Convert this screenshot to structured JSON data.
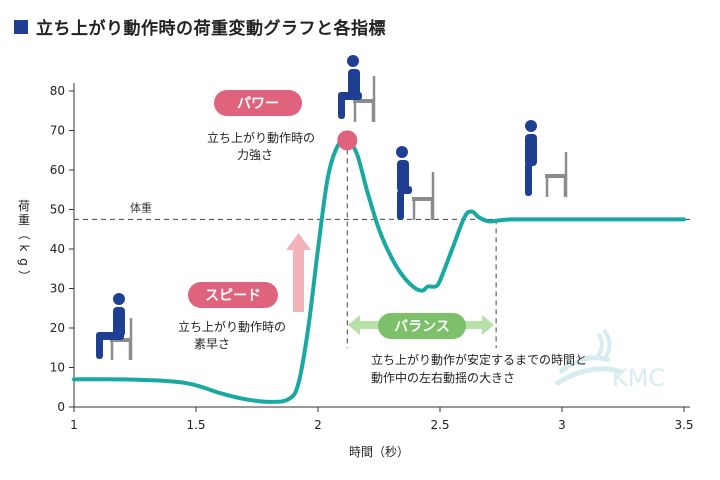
{
  "title": "立ち上がり動作時の荷重変動グラフと各指標",
  "colors": {
    "curve": "#1aa8a3",
    "title_square": "#1f3f93",
    "pill_pink": "#e0637e",
    "pill_green": "#7cc06a",
    "arrow_pink": "#f4b3b8",
    "figure": "#1f3f93",
    "chair": "#8c8c8c"
  },
  "chart_data": {
    "type": "line",
    "xlabel": "時間（秒）",
    "ylabel": "荷重（kg）",
    "xlim": [
      1,
      3.5
    ],
    "ylim": [
      0,
      82
    ],
    "xticks": [
      {
        "v": 1,
        "label": "1"
      },
      {
        "v": 1.5,
        "label": "1.5"
      },
      {
        "v": 2,
        "label": "2"
      },
      {
        "v": 2.5,
        "label": "2.5"
      },
      {
        "v": 3,
        "label": "3"
      },
      {
        "v": 3.5,
        "label": "3.5"
      }
    ],
    "yticks": [
      {
        "v": 0,
        "label": "0"
      },
      {
        "v": 10,
        "label": "10"
      },
      {
        "v": 20,
        "label": "20"
      },
      {
        "v": 30,
        "label": "30"
      },
      {
        "v": 40,
        "label": "40"
      },
      {
        "v": 50,
        "label": "50"
      },
      {
        "v": 60,
        "label": "60"
      },
      {
        "v": 70,
        "label": "70"
      },
      {
        "v": 80,
        "label": "80"
      }
    ],
    "grid": false,
    "series": [
      {
        "x": [
          1.0,
          1.2,
          1.4,
          1.5,
          1.6,
          1.7,
          1.8,
          1.88,
          1.92,
          1.96,
          2.0,
          2.04,
          2.08,
          2.12,
          2.16,
          2.2,
          2.25,
          2.3,
          2.35,
          2.4,
          2.43,
          2.45,
          2.48,
          2.5,
          2.55,
          2.6,
          2.63,
          2.66,
          2.7,
          2.75,
          2.8,
          3.0,
          3.2,
          3.5
        ],
        "y": [
          7,
          7,
          6.5,
          5.5,
          3.5,
          2,
          1.3,
          2,
          6,
          20,
          40,
          58,
          66,
          67.5,
          64,
          55,
          45,
          38,
          33,
          30,
          29.5,
          30.5,
          30.5,
          32,
          40,
          48,
          49.5,
          48,
          47,
          47.3,
          47.5,
          47.5,
          47.5,
          47.5
        ]
      }
    ],
    "reference_line": {
      "label": "体重",
      "y": 47.5
    },
    "markers": {
      "peak": {
        "x": 2.12,
        "y": 67.5
      },
      "v_lines": [
        2.12,
        2.73
      ]
    },
    "annotations": {
      "power_pill": "パワー",
      "power_text": [
        "立ち上がり動作時の",
        "力強さ"
      ],
      "speed_pill": "スピード",
      "speed_text": [
        "立ち上がり動作時の",
        "素早さ"
      ],
      "balance_pill": "バランス",
      "balance_text": [
        "立ち上がり動作が安定するまでの時間と",
        "動作中の左右動揺の大きさ"
      ]
    },
    "watermark": "KMC"
  }
}
